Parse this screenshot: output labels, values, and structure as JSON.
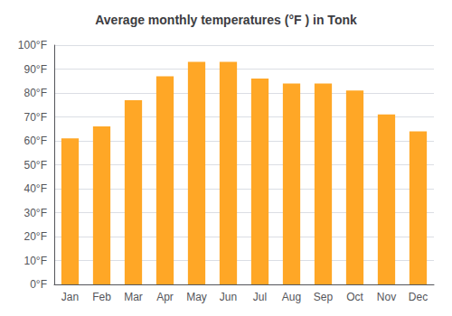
{
  "chart_data": {
    "type": "bar",
    "title": "Average monthly temperatures (°F ) in Tonk",
    "categories": [
      "Jan",
      "Feb",
      "Mar",
      "Apr",
      "May",
      "Jun",
      "Jul",
      "Aug",
      "Sep",
      "Oct",
      "Nov",
      "Dec"
    ],
    "values": [
      61,
      66,
      77,
      87,
      93,
      93,
      86,
      84,
      84,
      81,
      71,
      64
    ],
    "color": "#FFA726",
    "ylim": [
      0,
      100
    ],
    "yticks": [
      {
        "value": 0,
        "label": "0°F"
      },
      {
        "value": 10,
        "label": "10°F"
      },
      {
        "value": 20,
        "label": "20°F"
      },
      {
        "value": 30,
        "label": "30°F"
      },
      {
        "value": 40,
        "label": "40°F"
      },
      {
        "value": 50,
        "label": "50°F"
      },
      {
        "value": 60,
        "label": "60°F"
      },
      {
        "value": 70,
        "label": "70°F"
      },
      {
        "value": 80,
        "label": "80°F"
      },
      {
        "value": 90,
        "label": "90°F"
      },
      {
        "value": 100,
        "label": "100°F"
      }
    ],
    "grid": true
  }
}
